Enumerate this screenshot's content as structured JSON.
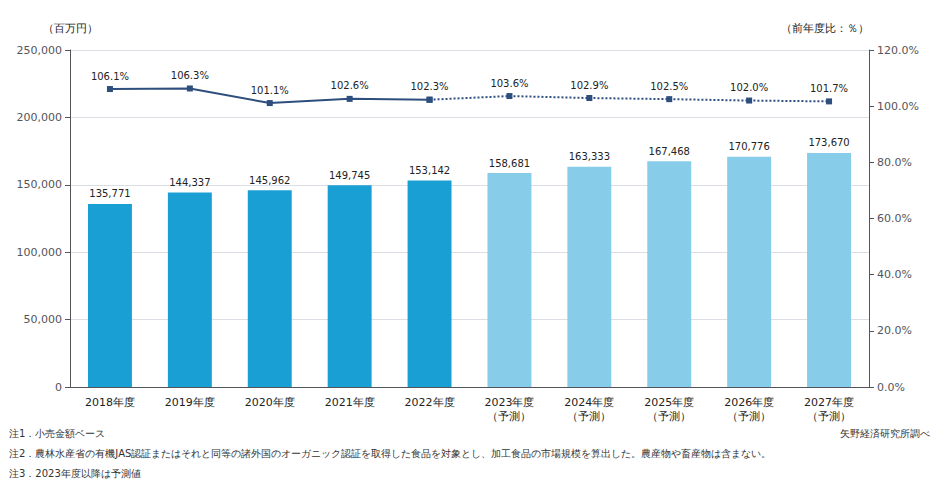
{
  "chart_data": {
    "type": "bar",
    "categories": [
      "2018年度",
      "2019年度",
      "2020年度",
      "2021年度",
      "2022年度",
      "2023年度\n（予測）",
      "2024年度\n（予測）",
      "2025年度\n（予測）",
      "2026年度\n（予測）",
      "2027年度\n（予測）"
    ],
    "ylabel": "（百万円）",
    "y2label": "（前年度比：％）",
    "ylim": [
      0,
      250000
    ],
    "yticks": [
      0,
      {
        "value": 50000,
        "label": "50,000"
      },
      {
        "value": 100000,
        "label": "100,000"
      },
      {
        "value": 150000,
        "label": "150,000"
      },
      {
        "value": 200000,
        "label": "200,000"
      },
      {
        "value": 250000,
        "label": "250,000"
      }
    ],
    "y2lim": [
      0.0,
      120.0
    ],
    "y2ticks": [
      {
        "value": 0,
        "label": "0.0%"
      },
      {
        "value": 20,
        "label": "20.0%"
      },
      {
        "value": 40,
        "label": "40.0%"
      },
      {
        "value": 60,
        "label": "60.0%"
      },
      {
        "value": 80,
        "label": "80.0%"
      },
      {
        "value": 100,
        "label": "100.0%"
      },
      {
        "value": 120,
        "label": "120.0%"
      }
    ],
    "grid": true,
    "data_labels": true,
    "series": [
      {
        "type": "bar",
        "colors": [
          "#1a9fd4",
          "#1a9fd4",
          "#1a9fd4",
          "#1a9fd4",
          "#1a9fd4",
          "#87cce8",
          "#87cce8",
          "#87cce8",
          "#87cce8",
          "#87cce8"
        ],
        "values": [
          135771,
          144337,
          145962,
          149745,
          153142,
          158681,
          163333,
          167468,
          170776,
          173670
        ],
        "value_labels": [
          "135,771",
          "144,337",
          "145,962",
          "149,745",
          "153,142",
          "158,681",
          "163,333",
          "167,468",
          "170,776",
          "173,670"
        ]
      },
      {
        "type": "line",
        "axis": "y2",
        "color": "#2e4e7e",
        "marker": "square",
        "line_style": "solid",
        "values": [
          106.1,
          106.3,
          101.1,
          102.6,
          102.3,
          null,
          null,
          null,
          null,
          null
        ],
        "value_labels": [
          "106.1%",
          "106.3%",
          "101.1%",
          "102.6%",
          "102.3%",
          null,
          null,
          null,
          null,
          null
        ]
      },
      {
        "type": "line",
        "axis": "y2",
        "color": "#2e4e7e",
        "marker": "square",
        "line_style": "dotted",
        "values": [
          null,
          null,
          null,
          null,
          102.3,
          103.6,
          102.9,
          102.5,
          102.0,
          101.7
        ],
        "value_labels": [
          null,
          null,
          null,
          null,
          null,
          "103.6%",
          "102.9%",
          "102.5%",
          "102.0%",
          "101.7%"
        ]
      }
    ],
    "notes": [
      "注1．小売金額ベース",
      "注2．農林水産省の有機JAS認証またはそれと同等の諸外国のオーガニック認証を取得した食品を対象とし、加工食品の市場規模を算出した。農産物や畜産物は含まない。",
      "注3．2023年度以降は予測値"
    ],
    "source": "矢野経済研究所調べ"
  }
}
